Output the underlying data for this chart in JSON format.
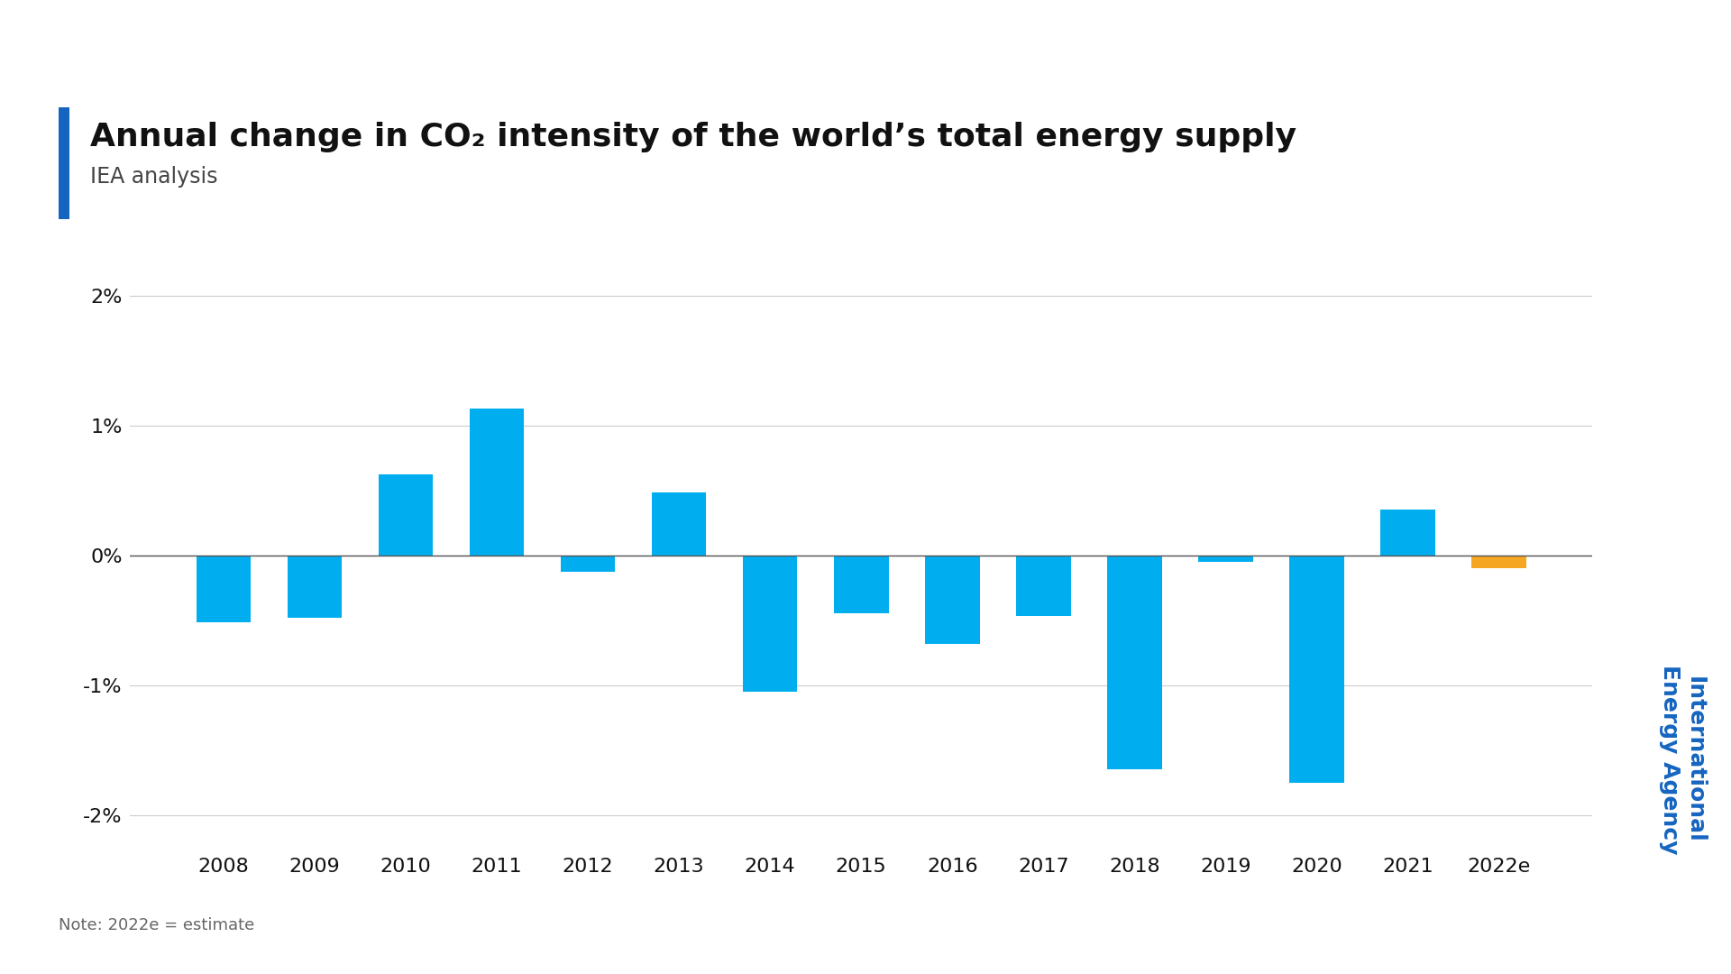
{
  "title_main": "Annual change in CO₂ intensity of the world’s total energy supply",
  "title_sub": "IEA analysis",
  "note": "Note: 2022e = estimate",
  "iea_line1": "International",
  "iea_line2": "Energy Agency",
  "bar_color_main": "#00AEEF",
  "bar_color_estimate": "#F5A623",
  "title_bar_color": "#1565C0",
  "categories": [
    "2008",
    "2009",
    "2010",
    "2011",
    "2012",
    "2013",
    "2014",
    "2015",
    "2016",
    "2017",
    "2018",
    "2019",
    "2020",
    "2021",
    "2022e"
  ],
  "values": [
    -0.52,
    -0.48,
    0.62,
    1.13,
    -0.13,
    0.48,
    -1.05,
    -0.45,
    -0.68,
    -0.47,
    -1.65,
    -0.05,
    -1.75,
    0.35,
    -0.1
  ],
  "ylim": [
    -2.25,
    2.25
  ],
  "yticks": [
    -2,
    -1,
    0,
    1,
    2
  ],
  "ytick_labels": [
    "-2%",
    "-1%",
    "0%",
    "1%",
    "2%"
  ],
  "bg_color": "#FFFFFF",
  "grid_color": "#CCCCCC",
  "title_fontsize": 26,
  "subtitle_fontsize": 17,
  "tick_fontsize": 16,
  "note_fontsize": 13,
  "iea_fontsize": 18
}
